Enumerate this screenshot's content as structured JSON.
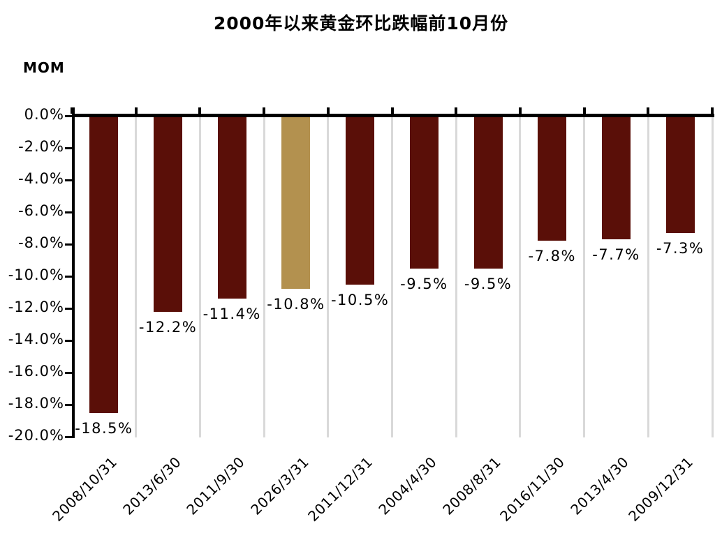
{
  "chart_data": {
    "type": "bar",
    "title": "2000年以来黄金环比跌幅前10月份",
    "ylabel": "MOM",
    "xlabel": "",
    "categories": [
      "2008/10/31",
      "2013/6/30",
      "2011/9/30",
      "2026/3/31",
      "2011/12/31",
      "2004/4/30",
      "2008/8/31",
      "2016/11/30",
      "2013/4/30",
      "2009/12/31"
    ],
    "values": [
      -18.5,
      -12.2,
      -11.4,
      -10.8,
      -10.5,
      -9.5,
      -9.5,
      -7.8,
      -7.7,
      -7.3
    ],
    "data_labels": [
      "-18.5%",
      "-12.2%",
      "-11.4%",
      "-10.8%",
      "-10.5%",
      "-9.5%",
      "-9.5%",
      "-7.8%",
      "-7.7%",
      "-7.3%"
    ],
    "y_ticks": [
      "0.0%",
      "-2.0%",
      "-4.0%",
      "-6.0%",
      "-8.0%",
      "-10.0%",
      "-12.0%",
      "-14.0%",
      "-16.0%",
      "-18.0%",
      "-20.0%"
    ],
    "ylim": [
      -20,
      0
    ],
    "highlight_index": 3,
    "legend": "none",
    "grid": "vertical category separators",
    "colors": {
      "bar": "#5a0f08",
      "highlight": "#b3914f",
      "grid_line": "#d9d9d9",
      "axis": "#000000",
      "text": "#000000",
      "background": "#ffffff"
    }
  }
}
